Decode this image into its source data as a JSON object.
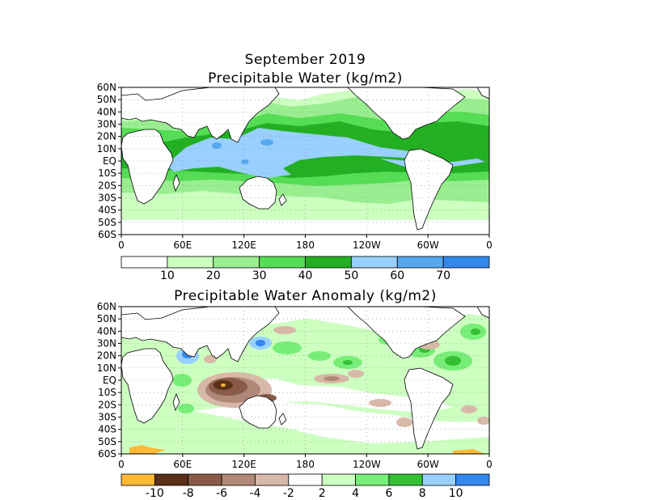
{
  "header": {
    "title_line1": "September 2019",
    "title_line2": "Precipitable Water (kg/m2)",
    "anomaly_title": "Precipitable Water Anomaly (kg/m2)"
  },
  "maps": {
    "lat_labels": [
      "60N",
      "50N",
      "40N",
      "30N",
      "20N",
      "10N",
      "EQ",
      "10S",
      "20S",
      "30S",
      "40S",
      "50S",
      "60S"
    ],
    "lon_labels": [
      "0",
      "60E",
      "120E",
      "180",
      "120W",
      "60W",
      "0"
    ]
  },
  "colorbars": {
    "pw": {
      "colors": [
        "#ffffff",
        "#ccffc0",
        "#99ee90",
        "#55dd55",
        "#22b022",
        "#99d0ff",
        "#55a8f0",
        "#3388ee"
      ],
      "labels": [
        "10",
        "20",
        "30",
        "40",
        "50",
        "60",
        "70"
      ]
    },
    "anomaly": {
      "colors": [
        "#ffb935",
        "#5a3018",
        "#8a5a48",
        "#b08878",
        "#d8b8a8",
        "#ffffff",
        "#ccffc0",
        "#77ee77",
        "#33c033",
        "#99d0ff",
        "#3388ee"
      ],
      "labels": [
        "-10",
        "-8",
        "-6",
        "-4",
        "-2",
        "2",
        "4",
        "6",
        "8",
        "10"
      ]
    }
  }
}
